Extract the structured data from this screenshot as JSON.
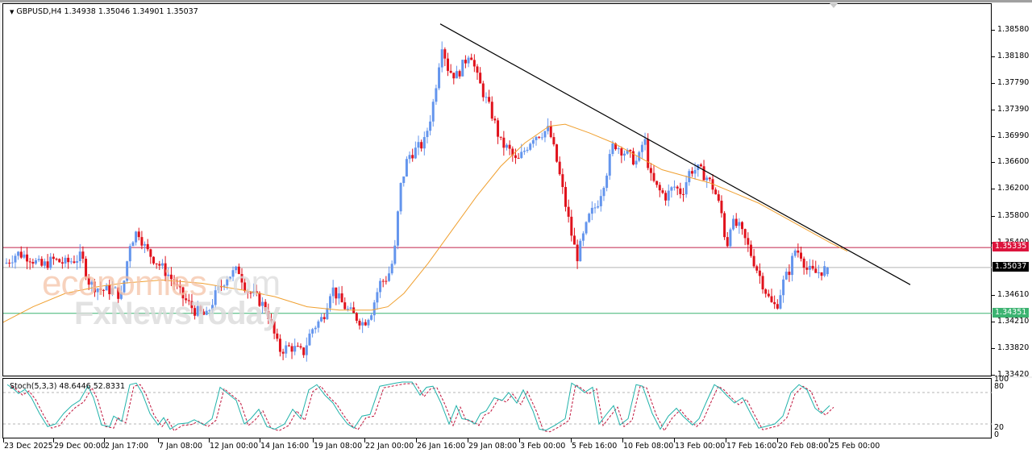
{
  "header": {
    "symbol_line": "GBPUSD,H4  1.34938 1.35046 1.34901 1.35037",
    "symbol": "GBPUSD",
    "timeframe": "H4",
    "open": "1.34938",
    "high": "1.35046",
    "low": "1.34901",
    "close": "1.35037"
  },
  "watermark": {
    "line1a": "economies",
    "line1b": ".com",
    "line2": "FxNewsToday"
  },
  "price_axis": {
    "ticks": [
      "1.38580",
      "1.38180",
      "1.37790",
      "1.37390",
      "1.36990",
      "1.36600",
      "1.36200",
      "1.35800",
      "1.35400",
      "1.34610",
      "1.34210",
      "1.33820",
      "1.33420"
    ],
    "tags": [
      {
        "label": "1.35335",
        "color": "#dc143c",
        "name": "resistance-tag"
      },
      {
        "label": "1.35037",
        "color": "#000000",
        "name": "current-price-tag"
      },
      {
        "label": "1.34351",
        "color": "#3cb371",
        "name": "support-tag"
      }
    ]
  },
  "stoch": {
    "title": "Stoch(5,3,3) 48.6446 52.8331",
    "levels": [
      "100",
      "80",
      "20",
      "0"
    ]
  },
  "time_axis": {
    "labels": [
      "23 Dec 2025",
      "29 Dec 00:00",
      "2 Jan 17:00",
      "7 Jan 08:00",
      "12 Jan 00:00",
      "14 Jan 16:00",
      "19 Jan 08:00",
      "22 Jan 00:00",
      "26 Jan 16:00",
      "29 Jan 08:00",
      "3 Feb 00:00",
      "5 Feb 16:00",
      "10 Feb 08:00",
      "13 Feb 00:00",
      "17 Feb 16:00",
      "20 Feb 08:00",
      "25 Feb 00:00"
    ]
  },
  "colors": {
    "bull": "#6495ed",
    "bear": "#e0121c",
    "ma": "#f0a030",
    "trendline": "#000000",
    "resistance": "#c0244a",
    "support": "#3cb371",
    "current": "#b4b4b4",
    "stoch_main": "#20b2aa",
    "stoch_signal": "#c0143c"
  },
  "chart_data": {
    "type": "candlestick",
    "title": "GBPUSD,H4",
    "symbol": "GBPUSD",
    "timeframe": "H4",
    "ohlc_last": {
      "open": 1.34938,
      "high": 1.35046,
      "low": 1.34901,
      "close": 1.35037
    },
    "ylim": [
      1.3322,
      1.388
    ],
    "y_ticks": [
      1.3858,
      1.3818,
      1.3779,
      1.3739,
      1.3699,
      1.366,
      1.362,
      1.358,
      1.354,
      1.3461,
      1.3421,
      1.3382,
      1.3342
    ],
    "x_tick_labels": [
      "23 Dec 2025",
      "29 Dec 00:00",
      "2 Jan 17:00",
      "7 Jan 08:00",
      "12 Jan 00:00",
      "14 Jan 16:00",
      "19 Jan 08:00",
      "22 Jan 00:00",
      "26 Jan 16:00",
      "29 Jan 08:00",
      "3 Feb 00:00",
      "5 Feb 16:00",
      "10 Feb 08:00",
      "13 Feb 00:00",
      "17 Feb 16:00",
      "20 Feb 08:00",
      "25 Feb 00:00"
    ],
    "horizontal_lines": [
      {
        "name": "resistance",
        "price": 1.35335,
        "color": "#c0244a"
      },
      {
        "name": "current",
        "price": 1.35037,
        "color": "#b4b4b4"
      },
      {
        "name": "support",
        "price": 1.34351,
        "color": "#3cb371"
      }
    ],
    "trendline": {
      "from": {
        "x": "26 Jan 16:00",
        "price": 1.3868
      },
      "to": {
        "x": "25 Feb 12:00",
        "price": 1.3478
      }
    },
    "moving_average": {
      "color": "#f0a030",
      "approx_points": [
        {
          "x": "23 Dec",
          "price": 1.342
        },
        {
          "x": "2 Jan",
          "price": 1.3475
        },
        {
          "x": "7 Jan",
          "price": 1.348
        },
        {
          "x": "12 Jan",
          "price": 1.3465
        },
        {
          "x": "19 Jan",
          "price": 1.344
        },
        {
          "x": "22 Jan",
          "price": 1.344
        },
        {
          "x": "26 Jan",
          "price": 1.3465
        },
        {
          "x": "29 Jan",
          "price": 1.356
        },
        {
          "x": "3 Feb",
          "price": 1.367
        },
        {
          "x": "5 Feb",
          "price": 1.372
        },
        {
          "x": "10 Feb",
          "price": 1.369
        },
        {
          "x": "13 Feb",
          "price": 1.364
        },
        {
          "x": "17 Feb",
          "price": 1.3615
        },
        {
          "x": "20 Feb",
          "price": 1.356
        }
      ]
    },
    "key_swings": [
      {
        "x": "26 Jan 16:00",
        "price": 1.3868,
        "type": "high"
      },
      {
        "x": "14 Jan 16:00",
        "price": 1.335,
        "type": "low"
      },
      {
        "x": "5 Feb 16:00",
        "price": 1.3505,
        "type": "low"
      },
      {
        "x": "10 Feb 08:00",
        "price": 1.3715,
        "type": "high"
      },
      {
        "x": "17 Feb 16:00",
        "price": 1.3435,
        "type": "low"
      }
    ],
    "indicator": {
      "name": "Stoch(5,3,3)",
      "main": 48.6446,
      "signal": 52.8331,
      "levels": [
        20,
        80
      ],
      "range": [
        0,
        100
      ]
    }
  }
}
